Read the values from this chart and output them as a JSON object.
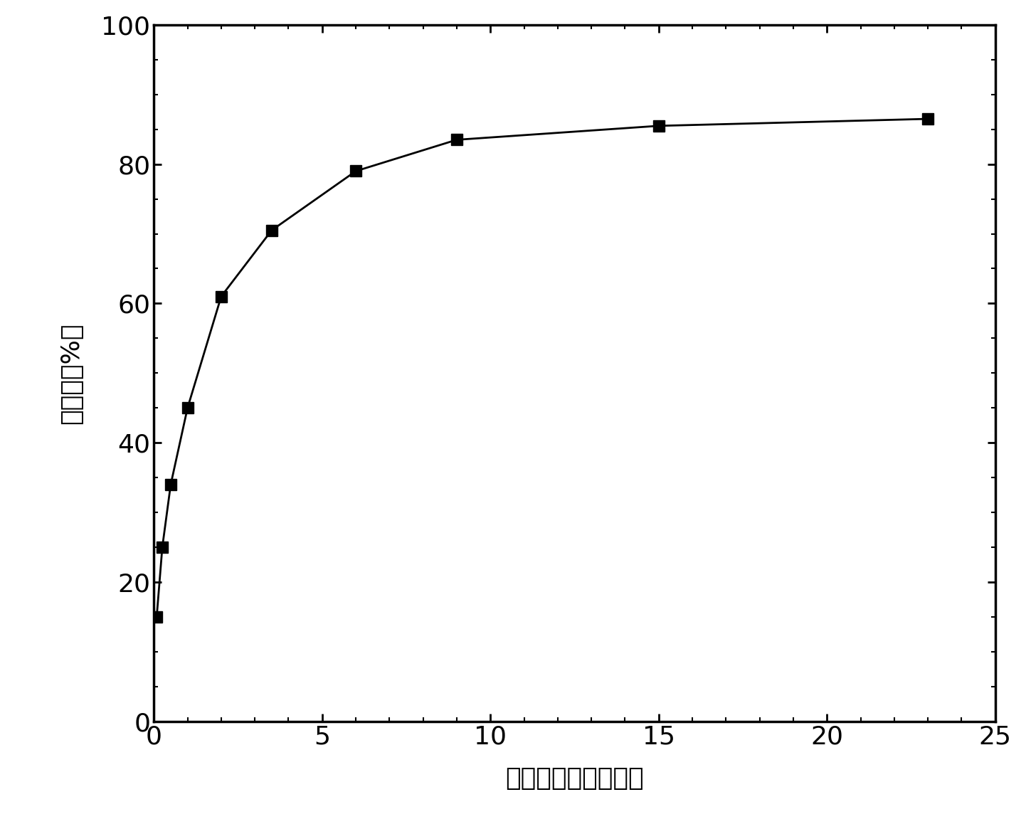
{
  "x": [
    0.083,
    0.25,
    0.5,
    1.0,
    2.0,
    3.5,
    6.0,
    9.0,
    15.0,
    23.0
  ],
  "y": [
    15.0,
    25.0,
    34.0,
    45.0,
    61.0,
    70.5,
    79.0,
    83.5,
    85.5,
    86.5
  ],
  "xlim": [
    0,
    25
  ],
  "ylim": [
    0,
    100
  ],
  "xticks": [
    0,
    5,
    10,
    15,
    20,
    25
  ],
  "yticks": [
    0,
    20,
    40,
    60,
    80,
    100
  ],
  "xlabel": "释放时间　（小时）",
  "ylabel": "释放率（%）",
  "line_color": "#000000",
  "marker": "s",
  "marker_color": "#000000",
  "marker_size": 11,
  "linewidth": 2.0,
  "background_color": "#ffffff",
  "xlabel_fontsize": 26,
  "ylabel_fontsize": 26,
  "tick_fontsize": 26,
  "spine_linewidth": 2.5
}
